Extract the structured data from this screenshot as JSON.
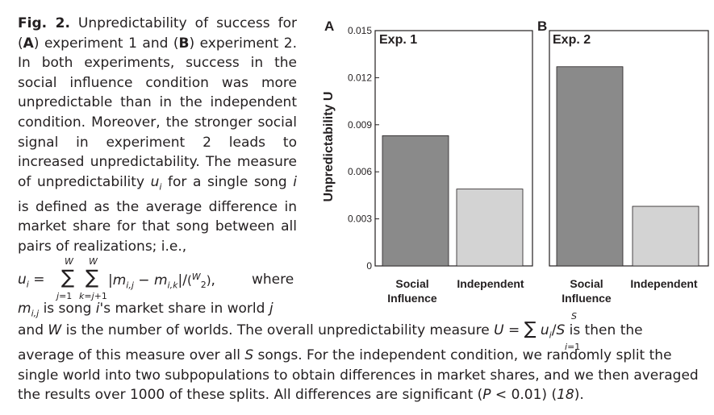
{
  "caption": {
    "fig_label": "Fig. 2.",
    "p1": " Unpredictability of success for (",
    "a": "A",
    "p2": ") experiment 1 and (",
    "b": "B",
    "p3": ") experiment 2. In both experiments, success in the social influence condition was more unpredictable than in the independent condition. Moreover, the stronger social signal in experiment 2 leads to increased unpredictability. The measure of unpredictability ",
    "u_i": "u",
    "p4": " for a single song ",
    "i": "i",
    "p5": " is defined as the average difference in market share for that song between all pairs of realizations; i.e.,",
    "formula": "u_i = Σ_{j=1}^{W} Σ_{k=j+1}^{W} |m_{i,j} − m_{i,k}| / (W choose 2), where",
    "formula_display": "u_i = Σ Σ |m_i,j − m_i,k|/(W 2),",
    "where": "where",
    "line_mij": "m_i,j is song i's market share in world j",
    "bottom_1": "and W is the number of worlds. The overall unpredictability measure U = Σ u_i/S is then the",
    "bottom_2": "average of this measure over all S songs. For the independent condition, we randomly split the",
    "bottom_3": "single world into two subpopulations to obtain differences in market shares, and we then averaged",
    "bottom_4": "the results over 1000 of these splits. All differences are significant (P < 0.01) (18)."
  },
  "chart_data": [
    {
      "type": "bar",
      "panel": "A",
      "title": "Exp. 1",
      "ylabel": "Unpredictability U",
      "categories": [
        "Social\nInfluence",
        "Independent"
      ],
      "values": [
        0.0083,
        0.0049
      ],
      "colors": [
        "#8a8a8a",
        "#d3d3d3"
      ],
      "ylim": [
        0,
        0.015
      ],
      "yticks": [
        "0",
        "0.003",
        "0.006",
        "0.009",
        "0.012",
        "0.015"
      ]
    },
    {
      "type": "bar",
      "panel": "B",
      "title": "Exp. 2",
      "ylabel": "",
      "categories": [
        "Social\nInfluence",
        "Independent"
      ],
      "values": [
        0.0127,
        0.0038
      ],
      "colors": [
        "#8a8a8a",
        "#d3d3d3"
      ],
      "ylim": [
        0,
        0.015
      ]
    }
  ],
  "chart_labels": {
    "panel_a": "A",
    "panel_b": "B",
    "exp1": "Exp. 1",
    "exp2": "Exp. 2",
    "ylabel": "Unpredictability U",
    "cat1_line1": "Social",
    "cat1_line2": "Influence",
    "cat2": "Independent"
  }
}
